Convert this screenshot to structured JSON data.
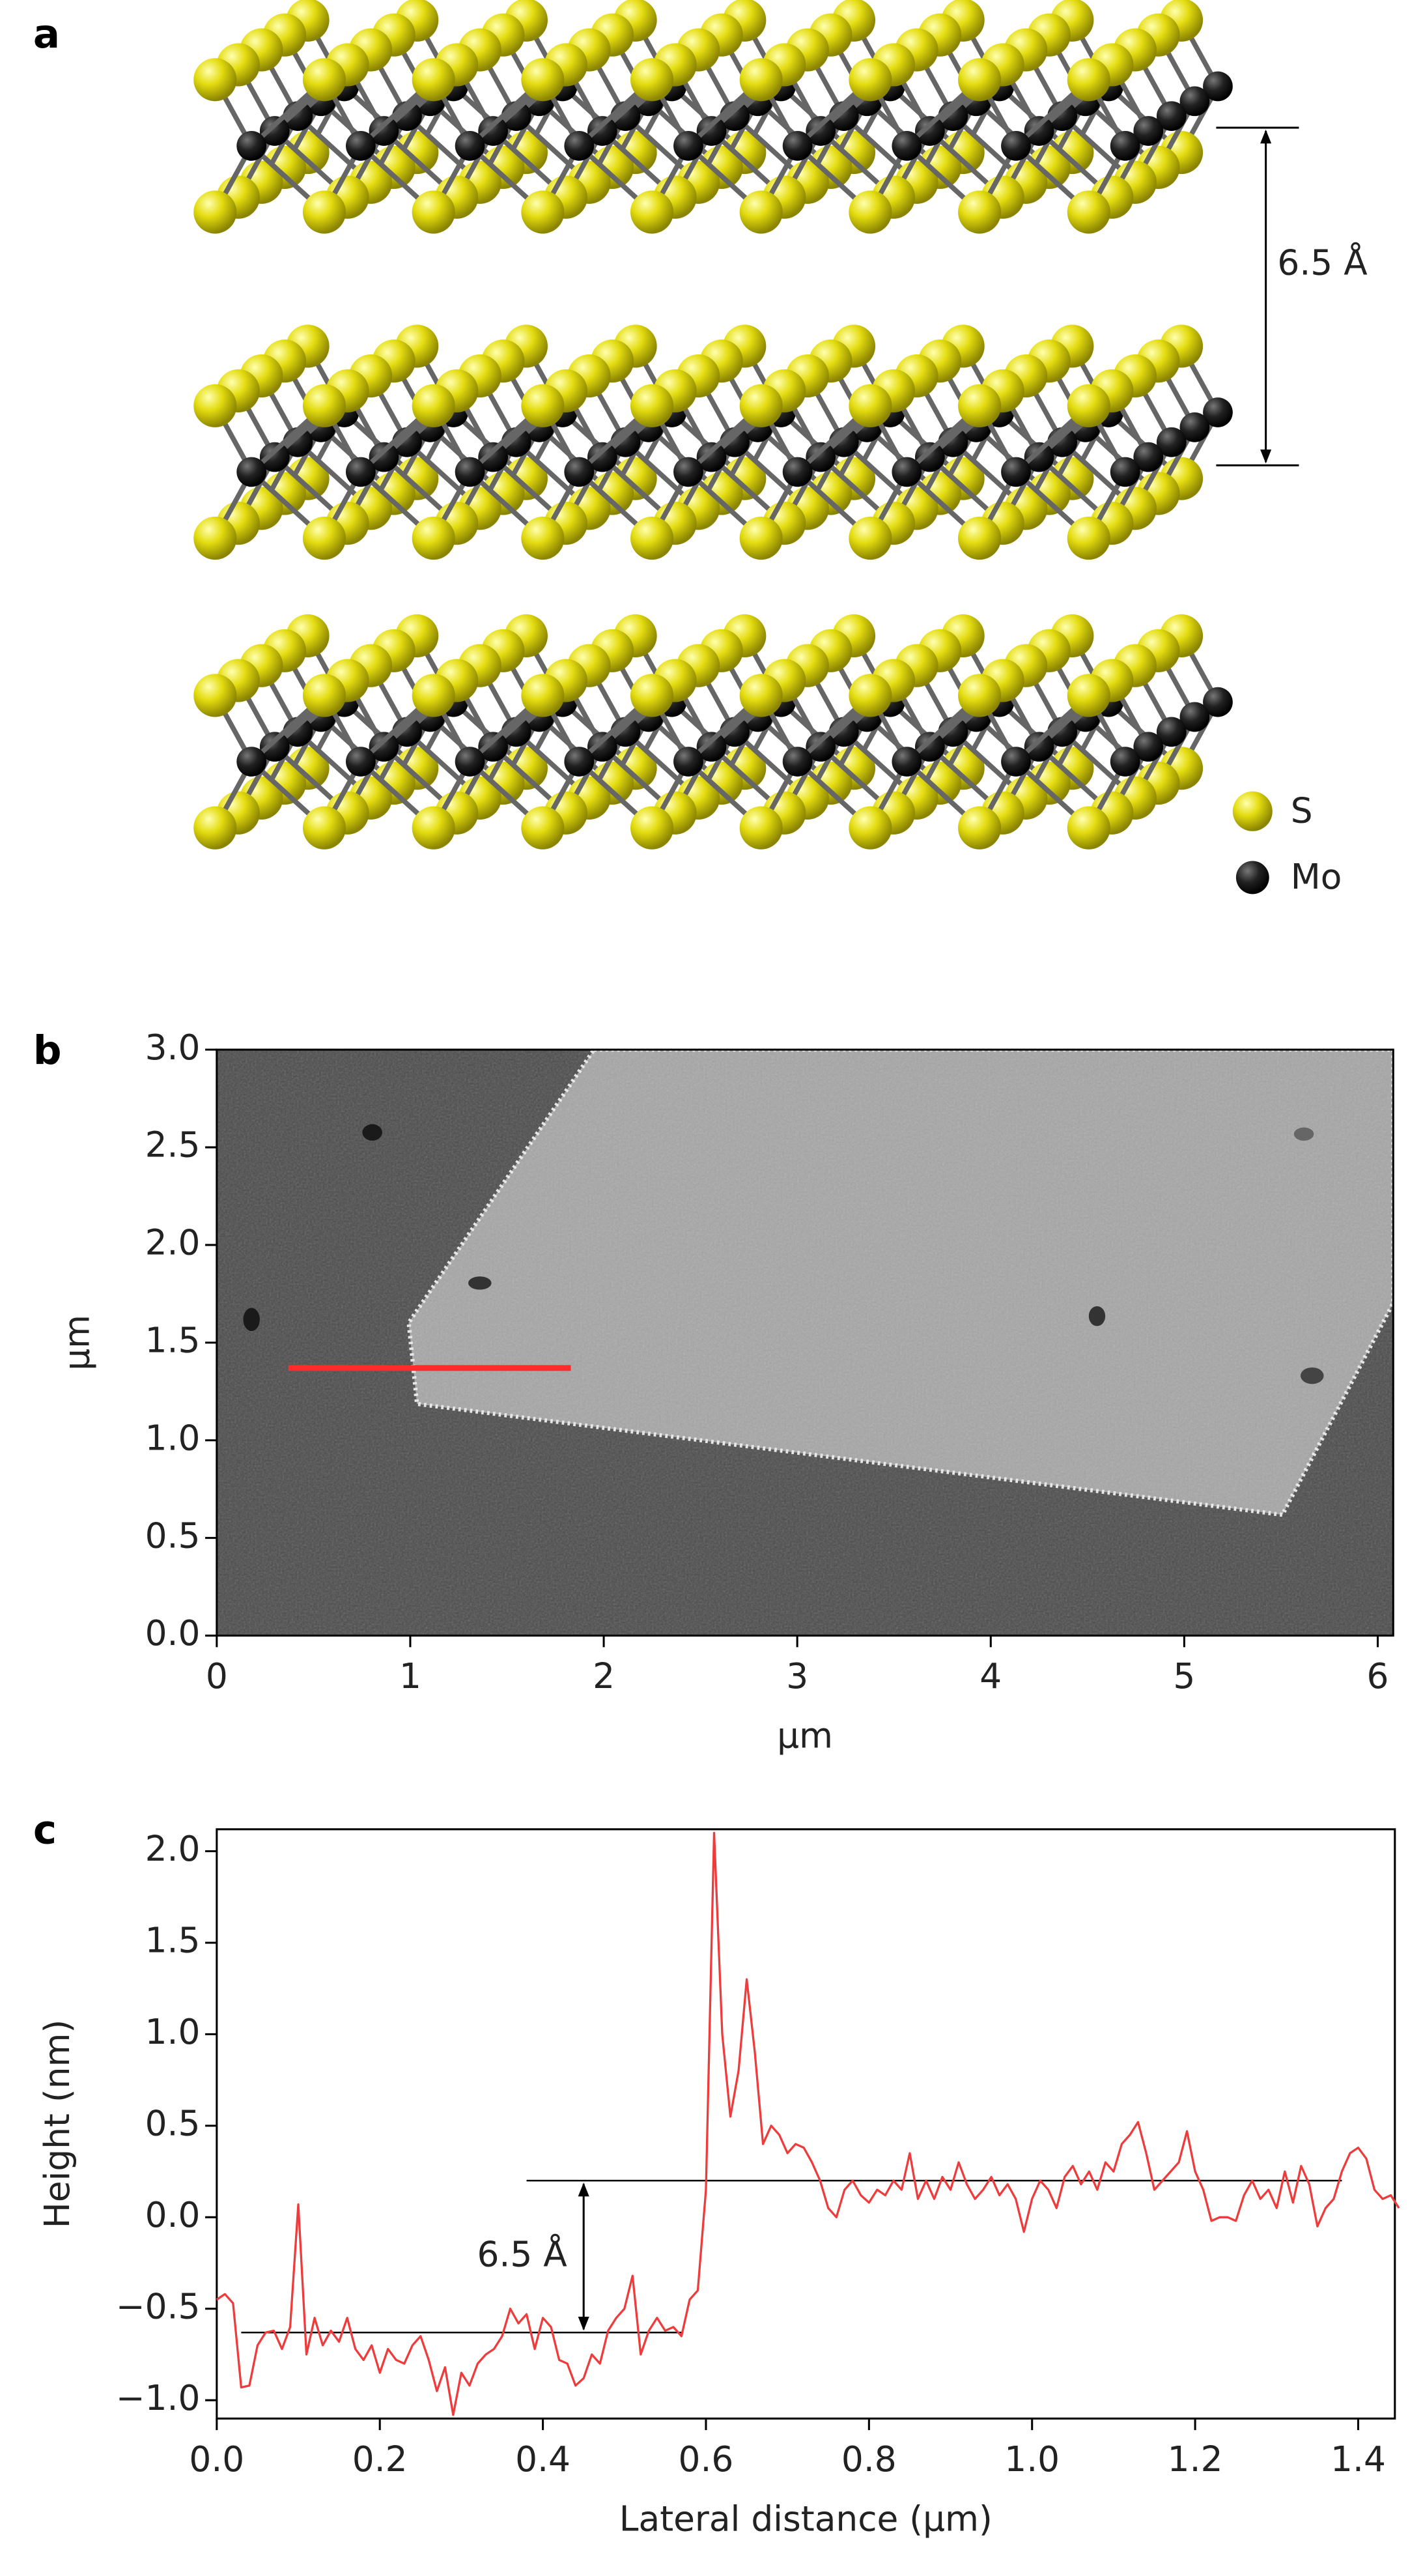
{
  "panel_a": {
    "panel_label": "a",
    "spacing_label": "6.5 Å",
    "legend": [
      {
        "name": "S",
        "color": "#d9d200"
      },
      {
        "name": "Mo",
        "color": "#1c1c1c"
      }
    ]
  },
  "chart_data": [
    {
      "type": "image",
      "panel_label": "b",
      "xlabel": "μm",
      "ylabel": "μm",
      "xlim": [
        0,
        6.08
      ],
      "ylim": [
        0,
        3.0
      ],
      "xticks": [
        0,
        1,
        2,
        3,
        4,
        5,
        6
      ],
      "yticks": [
        {
          "value": 0,
          "label": "0.0"
        },
        0.5,
        {
          "value": 1,
          "label": "1.0"
        },
        1.5,
        {
          "value": 2,
          "label": "2.0"
        },
        2.5,
        {
          "value": 3,
          "label": "3.0"
        }
      ],
      "profile_line": {
        "x": [
          0.37,
          1.83
        ],
        "y": 1.37,
        "color": "#ff2a2a"
      }
    },
    {
      "type": "line",
      "panel_label": "c",
      "xlabel": "Lateral distance (μm)",
      "ylabel": "Height  (nm)",
      "annotation": "6.5 Å",
      "xlim": [
        0,
        1.445
      ],
      "ylim": [
        -1.1,
        2.12
      ],
      "xticks": [
        {
          "value": 0,
          "label": "0.0"
        },
        0.2,
        0.4,
        0.6,
        0.8,
        {
          "value": 1,
          "label": "1.0"
        },
        1.2,
        1.4
      ],
      "yticks": [
        {
          "value": -1,
          "label": "−1.0"
        },
        {
          "value": -0.5,
          "label": "−0.5"
        },
        {
          "value": 0,
          "label": "0.0"
        },
        0.5,
        {
          "value": 1,
          "label": "1.0"
        },
        1.5,
        {
          "value": 2,
          "label": "2.0"
        }
      ],
      "reference_lines": [
        {
          "x": [
            0.03,
            0.57
          ],
          "y": -0.63
        },
        {
          "x": [
            0.38,
            1.38
          ],
          "y": 0.2
        }
      ],
      "x": [
        0,
        0.01,
        0.02,
        0.03,
        0.04,
        0.05,
        0.06,
        0.07,
        0.08,
        0.09,
        0.1,
        0.11,
        0.12,
        0.13,
        0.14,
        0.15,
        0.16,
        0.17,
        0.18,
        0.19,
        0.2,
        0.21,
        0.22,
        0.23,
        0.24,
        0.25,
        0.26,
        0.27,
        0.28,
        0.29,
        0.3,
        0.31,
        0.32,
        0.33,
        0.34,
        0.35,
        0.36,
        0.37,
        0.38,
        0.39,
        0.4,
        0.41,
        0.42,
        0.43,
        0.44,
        0.45,
        0.46,
        0.47,
        0.48,
        0.49,
        0.5,
        0.51,
        0.52,
        0.53,
        0.54,
        0.55,
        0.56,
        0.57,
        0.58,
        0.59,
        0.6,
        0.61,
        0.62,
        0.63,
        0.64,
        0.65,
        0.66,
        0.67,
        0.68,
        0.69,
        0.7,
        0.71,
        0.72,
        0.73,
        0.74,
        0.75,
        0.76,
        0.77,
        0.78,
        0.79,
        0.8,
        0.81,
        0.82,
        0.83,
        0.84,
        0.85,
        0.86,
        0.87,
        0.88,
        0.89,
        0.9,
        0.91,
        0.92,
        0.93,
        0.94,
        0.95,
        0.96,
        0.97,
        0.98,
        0.99,
        1,
        1.01,
        1.02,
        1.03,
        1.04,
        1.05,
        1.06,
        1.07,
        1.08,
        1.09,
        1.1,
        1.11,
        1.12,
        1.13,
        1.14,
        1.15,
        1.16,
        1.17,
        1.18,
        1.19,
        1.2,
        1.21,
        1.22,
        1.23,
        1.24,
        1.25,
        1.26,
        1.27,
        1.28,
        1.29,
        1.3,
        1.31,
        1.32,
        1.33,
        1.34,
        1.35,
        1.36,
        1.37,
        1.38,
        1.39,
        1.4,
        1.41,
        1.42,
        1.43,
        1.44,
        1.45
      ],
      "series": [
        {
          "color": "#ee3b3b",
          "values": [
            -0.45,
            -0.42,
            -0.47,
            -0.93,
            -0.92,
            -0.7,
            -0.63,
            -0.62,
            -0.72,
            -0.6,
            0.07,
            -0.75,
            -0.55,
            -0.7,
            -0.62,
            -0.68,
            -0.55,
            -0.72,
            -0.78,
            -0.7,
            -0.85,
            -0.72,
            -0.78,
            -0.8,
            -0.7,
            -0.65,
            -0.78,
            -0.95,
            -0.82,
            -1.08,
            -0.85,
            -0.92,
            -0.8,
            -0.75,
            -0.72,
            -0.65,
            -0.5,
            -0.58,
            -0.53,
            -0.72,
            -0.55,
            -0.6,
            -0.78,
            -0.8,
            -0.92,
            -0.88,
            -0.75,
            -0.8,
            -0.62,
            -0.55,
            -0.5,
            -0.32,
            -0.75,
            -0.62,
            -0.55,
            -0.62,
            -0.6,
            -0.65,
            -0.45,
            -0.4,
            0.15,
            2.1,
            1.0,
            0.55,
            0.8,
            1.3,
            0.9,
            0.4,
            0.5,
            0.45,
            0.35,
            0.4,
            0.38,
            0.3,
            0.2,
            0.05,
            0.0,
            0.15,
            0.2,
            0.12,
            0.08,
            0.15,
            0.12,
            0.2,
            0.15,
            0.35,
            0.1,
            0.2,
            0.1,
            0.22,
            0.15,
            0.3,
            0.18,
            0.1,
            0.15,
            0.22,
            0.12,
            0.18,
            0.1,
            -0.08,
            0.1,
            0.2,
            0.15,
            0.05,
            0.22,
            0.28,
            0.18,
            0.25,
            0.15,
            0.3,
            0.25,
            0.4,
            0.45,
            0.52,
            0.35,
            0.15,
            0.2,
            0.25,
            0.3,
            0.47,
            0.25,
            0.15,
            -0.02,
            0.0,
            0.0,
            -0.02,
            0.12,
            0.2,
            0.1,
            0.15,
            0.05,
            0.25,
            0.08,
            0.28,
            0.18,
            -0.05,
            0.05,
            0.1,
            0.25,
            0.35,
            0.38,
            0.32,
            0.15,
            0.1,
            0.12,
            0.05
          ]
        }
      ]
    }
  ]
}
